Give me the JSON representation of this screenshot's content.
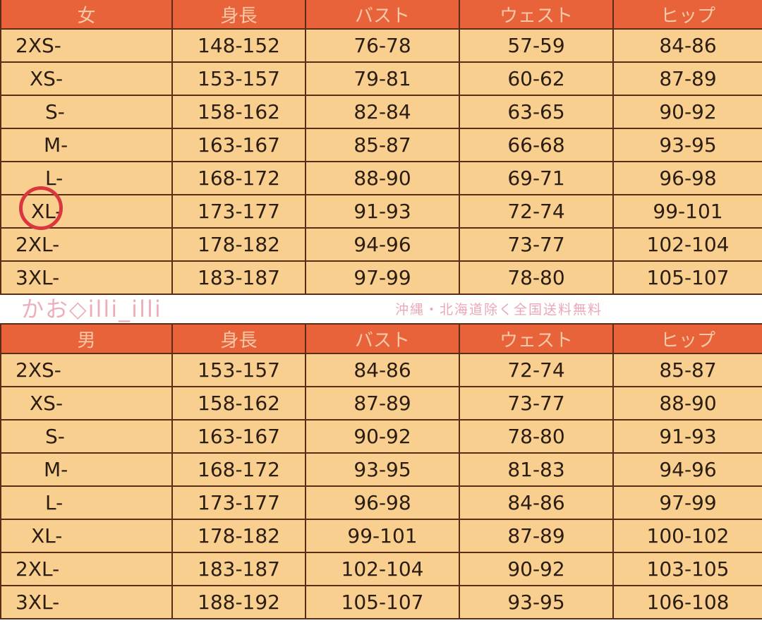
{
  "women": {
    "headers": [
      "女",
      "身長",
      "バスト",
      "ウェスト",
      "ヒップ"
    ],
    "rows": [
      [
        "2XS-",
        "148-152",
        "76-78",
        "57-59",
        "84-86"
      ],
      [
        "XS-",
        "153-157",
        "79-81",
        "60-62",
        "87-89"
      ],
      [
        "S-",
        "158-162",
        "82-84",
        "63-65",
        "90-92"
      ],
      [
        "M-",
        "163-167",
        "85-87",
        "66-68",
        "93-95"
      ],
      [
        "L-",
        "168-172",
        "88-90",
        "69-71",
        "96-98"
      ],
      [
        "XL-",
        "173-177",
        "91-93",
        "72-74",
        "99-101"
      ],
      [
        "2XL-",
        "178-182",
        "94-96",
        "73-77",
        "102-104"
      ],
      [
        "3XL-",
        "183-187",
        "97-99",
        "78-80",
        "105-107"
      ]
    ],
    "highlighted_size": "XL-",
    "highlight_color": "#d9363e"
  },
  "men": {
    "headers": [
      "男",
      "身長",
      "バスト",
      "ウェスト",
      "ヒップ"
    ],
    "rows": [
      [
        "2XS-",
        "153-157",
        "84-86",
        "72-74",
        "85-87"
      ],
      [
        "XS-",
        "158-162",
        "87-89",
        "73-77",
        "88-90"
      ],
      [
        "S-",
        "163-167",
        "90-92",
        "78-80",
        "91-93"
      ],
      [
        "M-",
        "168-172",
        "93-95",
        "81-83",
        "94-96"
      ],
      [
        "L-",
        "173-177",
        "96-98",
        "84-86",
        "97-99"
      ],
      [
        "XL-",
        "178-182",
        "99-101",
        "87-89",
        "100-102"
      ],
      [
        "2XL-",
        "183-187",
        "102-104",
        "90-92",
        "103-105"
      ],
      [
        "3XL-",
        "188-192",
        "105-107",
        "93-95",
        "106-108"
      ]
    ]
  },
  "watermark": {
    "name": "かお◇illi_illi",
    "note": "沖縄・北海道除く全国送料無料"
  },
  "colors": {
    "header_bg": "#e8633a",
    "cell_bg": "#f8cf8e",
    "border": "#5a2e14"
  }
}
